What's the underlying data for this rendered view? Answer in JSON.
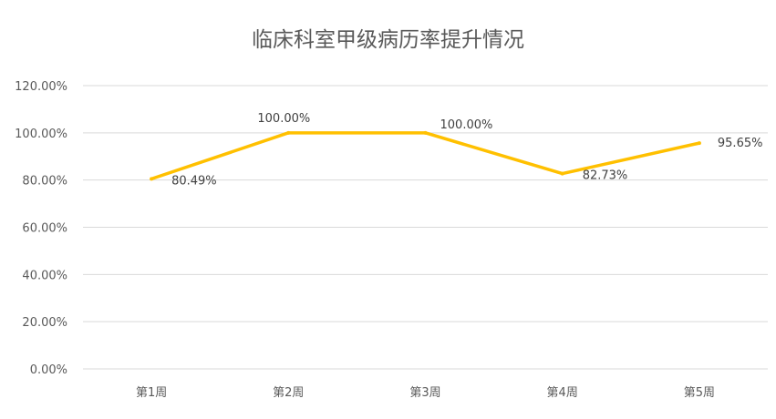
{
  "chart_data": {
    "type": "line",
    "title": "临床科室甲级病历率提升情况",
    "categories": [
      "第1周",
      "第2周",
      "第3周",
      "第4周",
      "第5周"
    ],
    "series": [
      {
        "values": [
          80.49,
          100.0,
          100.0,
          82.73,
          95.65
        ],
        "labels": [
          "80.49%",
          "100.00%",
          "100.00%",
          "82.73%",
          "95.65%"
        ]
      }
    ],
    "y_ticks": [
      "0.00%",
      "20.00%",
      "40.00%",
      "60.00%",
      "80.00%",
      "100.00%",
      "120.00%"
    ],
    "ylim": [
      0,
      120
    ],
    "grid": true,
    "line_color": "#FFC000",
    "grid_color": "#D9D9D9"
  }
}
